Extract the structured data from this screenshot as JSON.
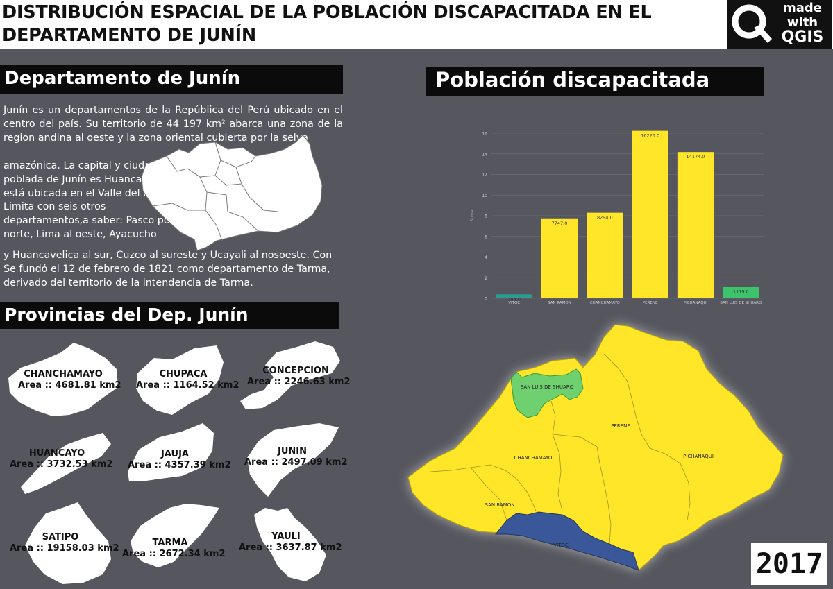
{
  "title": {
    "line1": "DISTRIBUCIÓN ESPACIAL DE LA POBLACIÓN DISCAPACITADA EN EL",
    "line2": "DEPARTAMENTO DE JUNÍN"
  },
  "logo": {
    "line1": "made",
    "line2": "with",
    "line3": "QGIS"
  },
  "section_dept": {
    "heading": "Departamento de Junín",
    "text_top": "Junín es un departamentos de la República del Perú ubicado en el centro del país. Su territorio de 44 197 km² abarca una zona de la region andina al oeste y la zona oriental cubierta por la selva",
    "text_left": "amazónica. La capital y ciudad más poblada de Junín es Huancayo que está ubicada en el Valle del Mantaro. Limita con seis otros departamentos,a saber: Pasco por el norte, Lima al oeste, Ayacucho",
    "text_bottom": "y Huancavelica al sur, Cuzco al sureste y Ucayali al nosoeste. Con Se fundó el 12 de febrero de 1821 como departamento de Tarma, derivado del territorio de la intendencia de Tarma."
  },
  "section_prov": {
    "heading": "Provincias del Dep.  Junín",
    "items": [
      {
        "name": "CHANCHAMAYO",
        "area": "Area :: 4681.81 km2"
      },
      {
        "name": "CHUPACA",
        "area": "Area :: 1164.52 km2"
      },
      {
        "name": "CONCEPCION",
        "area": "Area :: 2246.63 km2"
      },
      {
        "name": "HUANCAYO",
        "area": "Area :: 3732.53 km2"
      },
      {
        "name": "JAUJA",
        "area": "Area :: 4357.39 km2"
      },
      {
        "name": "JUNIN",
        "area": "Area :: 2497.09 km2"
      },
      {
        "name": "SATIPO",
        "area": "Area :: 19158.03 km2"
      },
      {
        "name": "TARMA",
        "area": "Area :: 2672.34 km2"
      },
      {
        "name": "YAULI",
        "area": "Area :: 3637.87 km2"
      }
    ]
  },
  "section_chart": {
    "heading": "Población discapacitada"
  },
  "chart_data": {
    "type": "bar",
    "categories": [
      "VITOC",
      "SAN RAMON",
      "CHANCHAMAYO",
      "PERENE",
      "PICHANAQUI",
      "SAN LUIS DE SHUARO"
    ],
    "values": [
      384.0,
      7747.0,
      8294.0,
      16226.0,
      14174.0,
      1119.0
    ],
    "value_labels": [
      "384.0",
      "7747.0",
      "8294.0",
      "16226.0",
      "14174.0",
      "1119.0"
    ],
    "bar_colors": [
      "#2a9d8f",
      "#ffe629",
      "#ffe629",
      "#ffe629",
      "#ffe629",
      "#3dc46a"
    ],
    "ylabel": "Suma",
    "yticks": [
      "0",
      "2",
      "4",
      "6",
      "8",
      "10",
      "12",
      "14",
      "16"
    ],
    "ylim": [
      0,
      16000
    ]
  },
  "map": {
    "districts": [
      "SAN LUIS DE SHUARO",
      "PERENE",
      "CHANCHAMAYO",
      "PICHANAQUI",
      "SAN RAMON",
      "VITOC"
    ],
    "colors": {
      "yellow": "#ffe629",
      "green": "#6fd06f",
      "blue": "#3a5899"
    }
  },
  "year": "2017"
}
